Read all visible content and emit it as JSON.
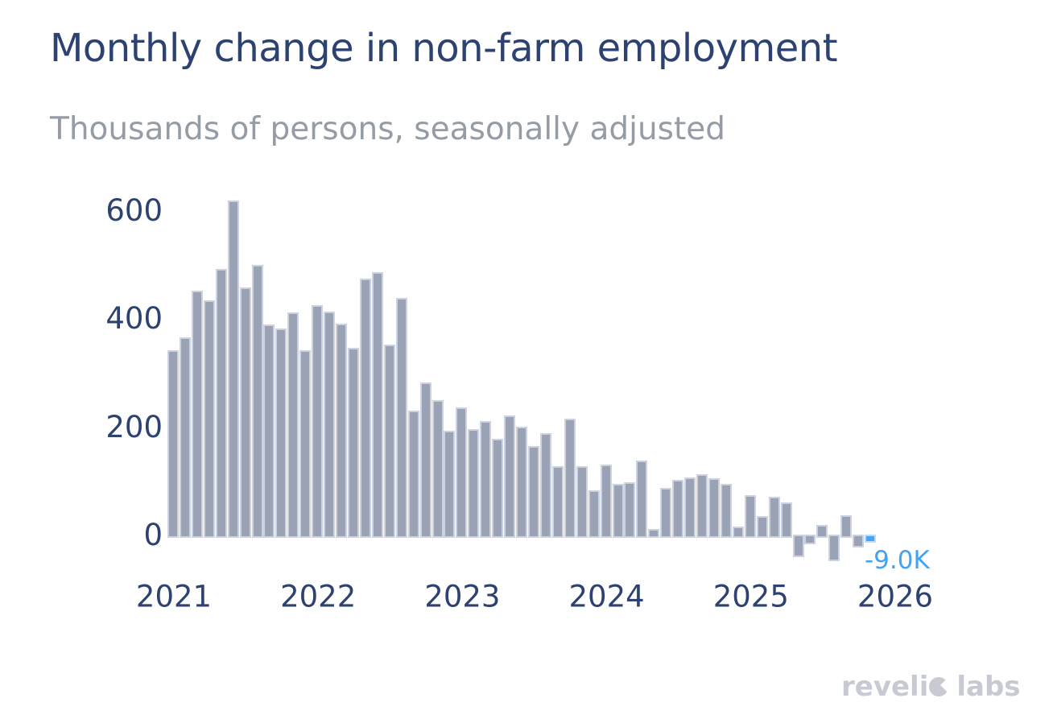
{
  "logo": {
    "brand": "revelio labs",
    "part1": "reveli",
    "part2": "labs"
  },
  "chart_data": {
    "type": "bar",
    "title": "Monthly change in non-farm employment",
    "subtitle": "Thousands of persons, seasonally adjusted",
    "ylabel": "Thousands of persons, seasonally adjusted",
    "xlabel": "",
    "grid": false,
    "legend": false,
    "yticks": [
      0,
      200,
      400,
      600
    ],
    "ylim": [
      -60,
      650
    ],
    "xticks": [
      "2021",
      "2022",
      "2023",
      "2024",
      "2025",
      "2026"
    ],
    "x": [
      "Jan 2021",
      "Feb 2021",
      "Mar 2021",
      "Apr 2021",
      "May 2021",
      "Jun 2021",
      "Jul 2021",
      "Aug 2021",
      "Sep 2021",
      "Oct 2021",
      "Nov 2021",
      "Dec 2021",
      "Jan 2022",
      "Feb 2022",
      "Mar 2022",
      "Apr 2022",
      "May 2022",
      "Jun 2022",
      "Jul 2022",
      "Aug 2022",
      "Sep 2022",
      "Oct 2022",
      "Nov 2022",
      "Dec 2022",
      "Jan 2023",
      "Feb 2023",
      "Mar 2023",
      "Apr 2023",
      "May 2023",
      "Jun 2023",
      "Jul 2023",
      "Aug 2023",
      "Sep 2023",
      "Oct 2023",
      "Nov 2023",
      "Dec 2023",
      "Jan 2024",
      "Feb 2024",
      "Mar 2024",
      "Apr 2024",
      "May 2024",
      "Jun 2024",
      "Jul 2024",
      "Aug 2024",
      "Sep 2024",
      "Oct 2024",
      "Nov 2024",
      "Dec 2024",
      "Jan 2025",
      "Feb 2025",
      "Mar 2025",
      "Apr 2025",
      "May 2025",
      "Jun 2025",
      "Jul 2025",
      "Aug 2025",
      "Sep 2025",
      "Oct 2025",
      "Nov 2025"
    ],
    "values": [
      340,
      365,
      450,
      432,
      490,
      617,
      456,
      498,
      388,
      381,
      410,
      340,
      424,
      412,
      390,
      345,
      473,
      485,
      351,
      437,
      229,
      281,
      248,
      192,
      235,
      195,
      210,
      177,
      220,
      200,
      163,
      187,
      127,
      214,
      127,
      82,
      130,
      93,
      97,
      137,
      11,
      86,
      101,
      106,
      112,
      104,
      94,
      15,
      73,
      34,
      70,
      60,
      -36,
      -12,
      18,
      -43,
      36,
      -18,
      -9
    ],
    "highlight_last_bar": true,
    "last_label": "-9.0K",
    "colors": {
      "bar": "#9aa2b5",
      "bar_border": "#ccd2df",
      "highlight": "#45a5f1",
      "axis_text": "#2d4270",
      "title": "#2d4270",
      "subtitle": "#949ca5",
      "last_label": "#42a3f2",
      "logo": "#c7cad3"
    }
  }
}
